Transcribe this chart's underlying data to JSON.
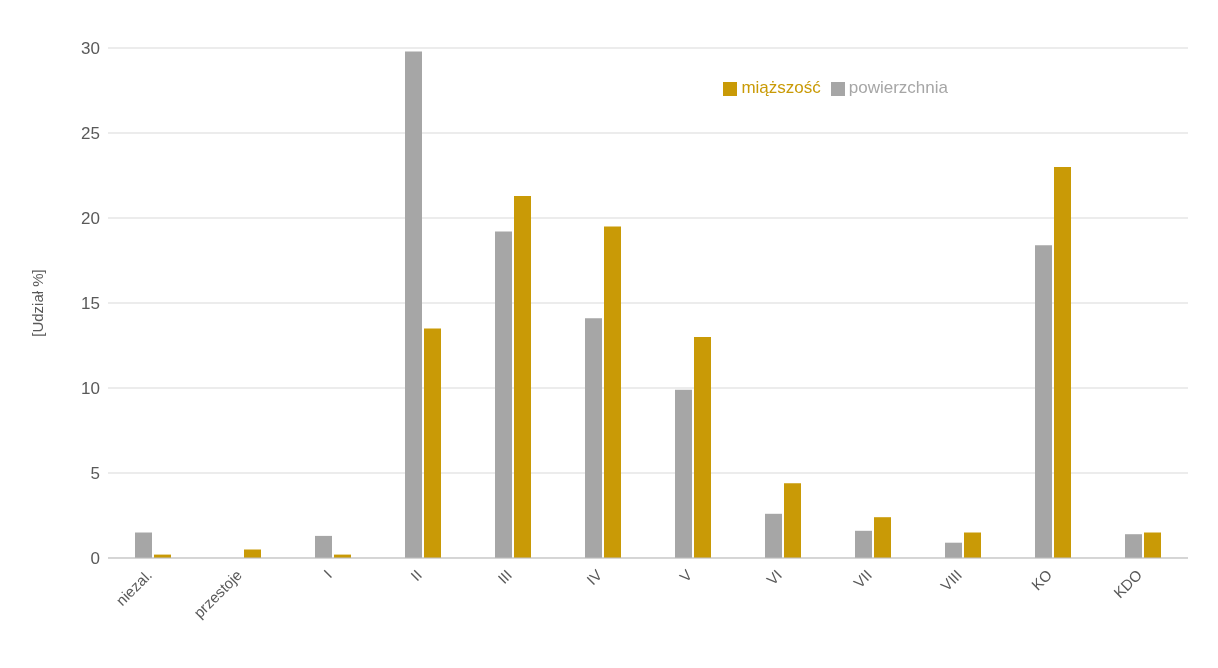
{
  "chart_data": {
    "type": "bar",
    "ylabel": "[Udział %]",
    "categories": [
      "niezal.",
      "przestoje",
      "I",
      "II",
      "III",
      "IV",
      "V",
      "VI",
      "VII",
      "VIII",
      "KO",
      "KDO"
    ],
    "series": [
      {
        "name": "powierzchnia",
        "color": "#a6a6a6",
        "values": [
          1.5,
          0,
          1.3,
          29.8,
          19.2,
          14.1,
          9.9,
          2.6,
          1.6,
          0.9,
          18.4,
          1.4
        ]
      },
      {
        "name": "miąższość",
        "color": "#c99a06",
        "values": [
          0.2,
          0.5,
          0.2,
          13.5,
          21.3,
          19.5,
          13.0,
          4.4,
          2.4,
          1.5,
          23.0,
          1.5
        ]
      }
    ],
    "ylim": [
      0,
      30
    ],
    "yticks": [
      0,
      5,
      10,
      15,
      20,
      25,
      30
    ],
    "grid": "y",
    "legend": "top right"
  }
}
